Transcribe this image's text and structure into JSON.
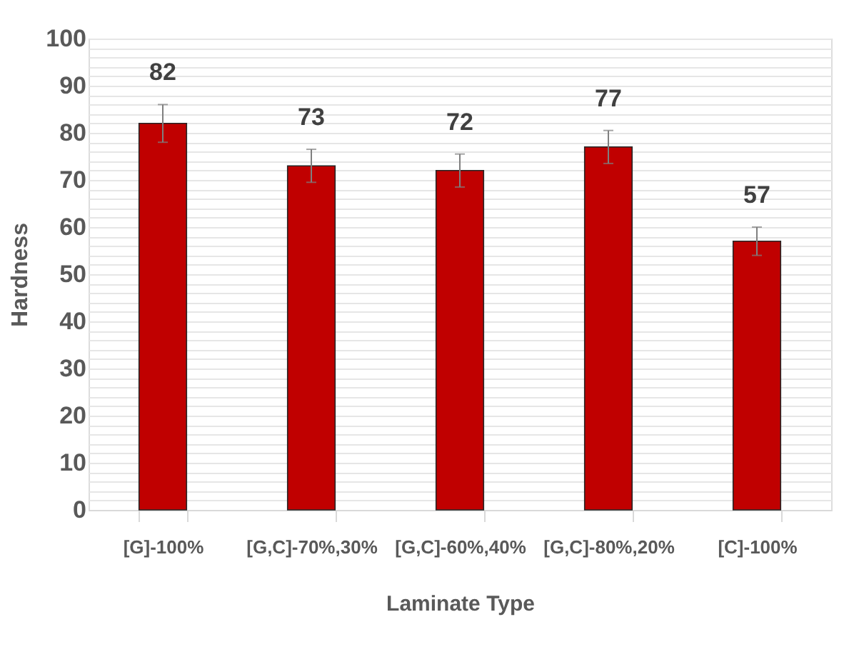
{
  "chart_data": {
    "type": "bar",
    "xlabel": "Laminate Type",
    "ylabel": "Hardness",
    "categories": [
      "[G]-100%",
      "[G,C]-70%,30%",
      "[G,C]-60%,40%",
      "[G,C]-80%,20%",
      "[C]-100%"
    ],
    "values": [
      82,
      73,
      72,
      77,
      57
    ],
    "errors": [
      4,
      3.5,
      3.5,
      3.5,
      3
    ],
    "color": "#c00000",
    "data_labels": true,
    "ylim": [
      0,
      100
    ],
    "yticks": [
      0,
      {
        "value": 2,
        "label": null
      },
      {
        "value": 4,
        "label": null
      },
      {
        "value": 6,
        "label": null
      },
      {
        "value": 8,
        "label": null
      },
      10,
      {
        "value": 12,
        "label": null
      },
      {
        "value": 14,
        "label": null
      },
      {
        "value": 16,
        "label": null
      },
      {
        "value": 18,
        "label": null
      },
      20,
      {
        "value": 22,
        "label": null
      },
      {
        "value": 24,
        "label": null
      },
      {
        "value": 26,
        "label": null
      },
      {
        "value": 28,
        "label": null
      },
      30,
      {
        "value": 32,
        "label": null
      },
      {
        "value": 34,
        "label": null
      },
      {
        "value": 36,
        "label": null
      },
      {
        "value": 38,
        "label": null
      },
      40,
      {
        "value": 42,
        "label": null
      },
      {
        "value": 44,
        "label": null
      },
      {
        "value": 46,
        "label": null
      },
      {
        "value": 48,
        "label": null
      },
      50,
      {
        "value": 52,
        "label": null
      },
      {
        "value": 54,
        "label": null
      },
      {
        "value": 56,
        "label": null
      },
      {
        "value": 58,
        "label": null
      },
      60,
      {
        "value": 62,
        "label": null
      },
      {
        "value": 64,
        "label": null
      },
      {
        "value": 66,
        "label": null
      },
      {
        "value": 68,
        "label": null
      },
      70,
      {
        "value": 72,
        "label": null
      },
      {
        "value": 74,
        "label": null
      },
      {
        "value": 76,
        "label": null
      },
      {
        "value": 78,
        "label": null
      },
      80,
      {
        "value": 82,
        "label": null
      },
      {
        "value": 84,
        "label": null
      },
      {
        "value": 86,
        "label": null
      },
      {
        "value": 88,
        "label": null
      },
      90,
      {
        "value": 92,
        "label": null
      },
      {
        "value": 94,
        "label": null
      },
      {
        "value": 96,
        "label": null
      },
      {
        "value": 98,
        "label": null
      },
      100
    ],
    "grid": "y"
  }
}
